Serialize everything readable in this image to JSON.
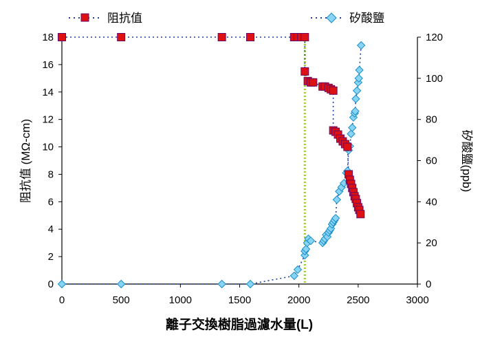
{
  "chart_data": {
    "type": "scatter",
    "xlabel": "離子交換樹脂過濾水量(L)",
    "ylabel": "阻抗值 (MΩ-cm)",
    "y2label": "矽酸鹽(ppb)",
    "xlim": [
      0,
      3000
    ],
    "ylim": [
      0,
      18
    ],
    "y2lim": [
      0,
      120
    ],
    "x_ticks": [
      "0",
      "500",
      "1000",
      "1500",
      "2000",
      "2500",
      "3000"
    ],
    "y_ticks": [
      "0",
      "2",
      "4",
      "6",
      "8",
      "10",
      "12",
      "14",
      "16",
      "18"
    ],
    "y2_ticks": [
      "0",
      "20",
      "40",
      "60",
      "80",
      "100",
      "120"
    ],
    "grid": false,
    "legend_position": "top",
    "reference_line": {
      "x": 2050,
      "color": "#99cc33",
      "style": "dotted"
    },
    "series": [
      {
        "name": "阻抗值",
        "axis": "left",
        "color": "#dd1111",
        "marker": "square",
        "points": [
          [
            0,
            18
          ],
          [
            500,
            18
          ],
          [
            1350,
            18
          ],
          [
            1590,
            18
          ],
          [
            1960,
            18
          ],
          [
            1990,
            18
          ],
          [
            2020,
            18
          ],
          [
            2050,
            18
          ],
          [
            2050,
            15.5
          ],
          [
            2075,
            14.8
          ],
          [
            2100,
            14.7
          ],
          [
            2120,
            14.7
          ],
          [
            2200,
            14.4
          ],
          [
            2220,
            14.4
          ],
          [
            2250,
            14.3
          ],
          [
            2270,
            14.2
          ],
          [
            2290,
            14.1
          ],
          [
            2290,
            11.2
          ],
          [
            2310,
            11.1
          ],
          [
            2330,
            10.9
          ],
          [
            2350,
            10.6
          ],
          [
            2370,
            10.4
          ],
          [
            2390,
            10.2
          ],
          [
            2410,
            10.0
          ],
          [
            2420,
            8.0
          ],
          [
            2430,
            7.6
          ],
          [
            2440,
            7.3
          ],
          [
            2450,
            7.0
          ],
          [
            2460,
            6.7
          ],
          [
            2470,
            6.4
          ],
          [
            2480,
            6.2
          ],
          [
            2490,
            5.9
          ],
          [
            2500,
            5.6
          ],
          [
            2510,
            5.4
          ],
          [
            2520,
            5.1
          ]
        ]
      },
      {
        "name": "矽酸鹽",
        "axis": "right",
        "color": "#33b5e5",
        "marker": "diamond",
        "points": [
          [
            0,
            0
          ],
          [
            500,
            0
          ],
          [
            1350,
            0
          ],
          [
            1590,
            0
          ],
          [
            1960,
            4
          ],
          [
            1990,
            7
          ],
          [
            2050,
            14
          ],
          [
            2050,
            16
          ],
          [
            2060,
            17
          ],
          [
            2070,
            20
          ],
          [
            2080,
            22
          ],
          [
            2100,
            21
          ],
          [
            2200,
            20
          ],
          [
            2210,
            21
          ],
          [
            2220,
            22
          ],
          [
            2230,
            24
          ],
          [
            2240,
            23
          ],
          [
            2250,
            25
          ],
          [
            2260,
            26
          ],
          [
            2270,
            27
          ],
          [
            2280,
            29
          ],
          [
            2290,
            30
          ],
          [
            2300,
            31
          ],
          [
            2310,
            32
          ],
          [
            2320,
            41
          ],
          [
            2340,
            45
          ],
          [
            2360,
            47
          ],
          [
            2380,
            49
          ],
          [
            2400,
            54
          ],
          [
            2410,
            55
          ],
          [
            2420,
            65
          ],
          [
            2430,
            67
          ],
          [
            2440,
            73
          ],
          [
            2450,
            76
          ],
          [
            2460,
            81
          ],
          [
            2470,
            83
          ],
          [
            2475,
            84
          ],
          [
            2480,
            90
          ],
          [
            2490,
            94
          ],
          [
            2500,
            98
          ],
          [
            2505,
            100
          ],
          [
            2510,
            104
          ],
          [
            2525,
            116
          ]
        ]
      }
    ]
  }
}
